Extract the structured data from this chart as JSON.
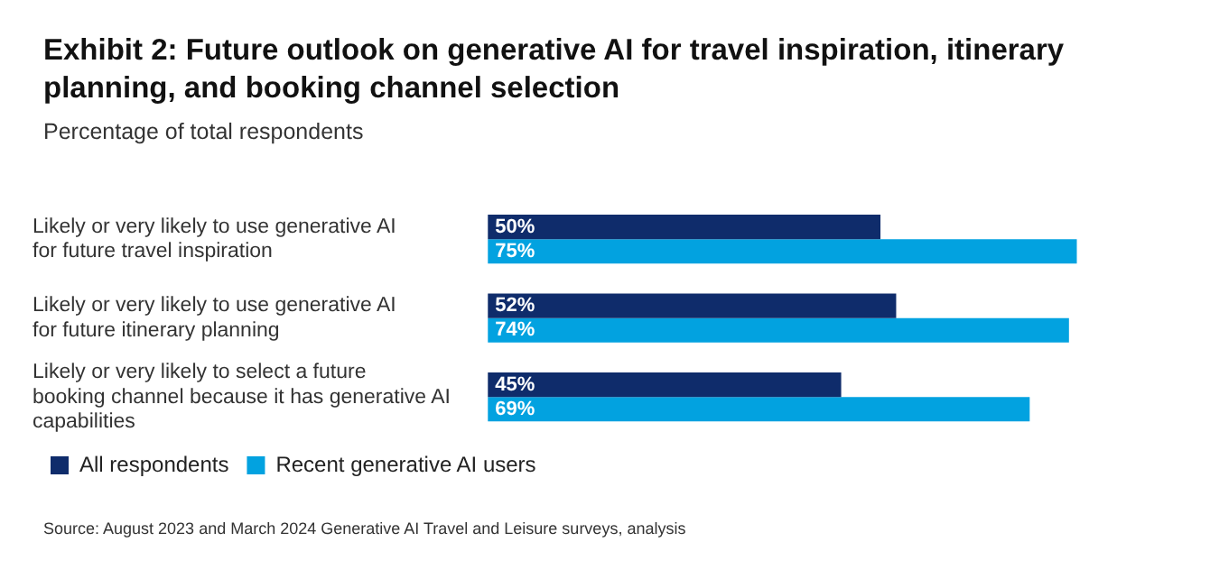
{
  "chart_data": {
    "type": "bar",
    "orientation": "horizontal",
    "title": "Exhibit 2: Future outlook on generative AI for travel inspiration, itinerary planning, and booking channel selection",
    "subtitle": "Percentage of total respondents",
    "categories": [
      "Likely or very likely to use generative AI for future travel inspiration",
      "Likely or very likely to use generative AI for future itinerary planning",
      "Likely or very likely to select a future booking channel because it has generative AI capabilities"
    ],
    "series": [
      {
        "name": "All respondents",
        "color": "#0f2c6b",
        "values": [
          50,
          52,
          45
        ],
        "value_labels": [
          "50%",
          "52%",
          "45%"
        ]
      },
      {
        "name": "Recent generative AI users",
        "color": "#02a2e0",
        "values": [
          75,
          74,
          69
        ],
        "value_labels": [
          "75%",
          "74%",
          "69%"
        ]
      }
    ],
    "legend": "bottom left",
    "annotations": [
      "Source: August 2023 and March 2024 Generative AI Travel and Leisure surveys, analysis"
    ]
  }
}
